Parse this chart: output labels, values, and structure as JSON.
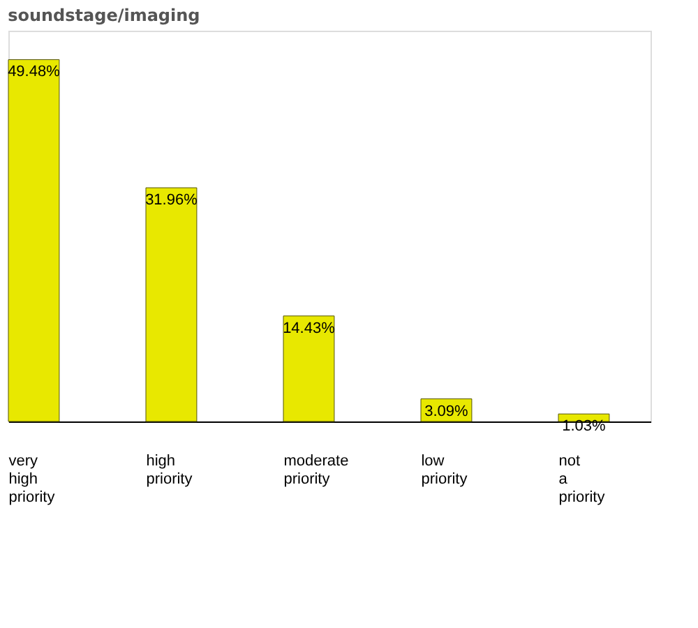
{
  "chart_data": {
    "type": "bar",
    "title": "soundstage/imaging",
    "categories": [
      "very high priority",
      "high priority",
      "moderate priority",
      "low priority",
      "not a priority"
    ],
    "values": [
      49.48,
      31.96,
      14.43,
      3.09,
      1.03
    ],
    "value_labels": [
      "49.48%",
      "31.96%",
      "14.43%",
      "3.09%",
      "1.03%"
    ],
    "color": "#e8e800"
  }
}
